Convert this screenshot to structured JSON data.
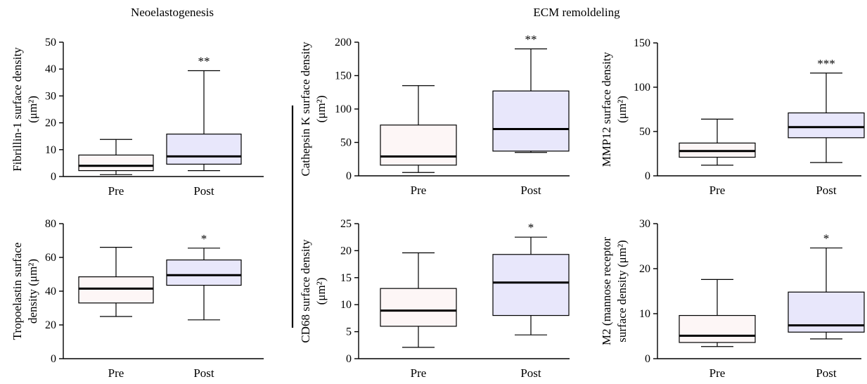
{
  "figure": {
    "section_left": "Neoelastogenesis",
    "section_right": "ECM remoldeling"
  },
  "colors": {
    "pre_box": "#fdf6f6",
    "post_box": "#e8e7fb",
    "line": "#000000",
    "median": "#000000"
  },
  "chart_data": [
    {
      "type": "box",
      "ylabel": [
        "Fibrillin-1 surface density",
        "(μm²)"
      ],
      "ylim": [
        0,
        50
      ],
      "yticks": [
        0,
        10,
        20,
        30,
        40,
        50
      ],
      "categories": [
        "Pre",
        "Post"
      ],
      "boxes": [
        {
          "min": 0.7,
          "q1": 2.2,
          "median": 4.0,
          "q3": 8.0,
          "max": 13.8
        },
        {
          "min": 2.2,
          "q1": 4.6,
          "median": 7.5,
          "q3": 15.8,
          "max": 39.4
        }
      ],
      "annotation": "**"
    },
    {
      "type": "box",
      "ylabel": [
        "Cathepsin K surface density",
        "(μm²)"
      ],
      "ylim": [
        0,
        200
      ],
      "yticks": [
        0,
        50,
        100,
        150,
        200
      ],
      "categories": [
        "Pre",
        "Post"
      ],
      "boxes": [
        {
          "min": 5,
          "q1": 16,
          "median": 29,
          "q3": 76,
          "max": 135
        },
        {
          "min": 35,
          "q1": 37,
          "median": 70,
          "q3": 127,
          "max": 190
        }
      ],
      "annotation": "**"
    },
    {
      "type": "box",
      "ylabel": [
        "MMP12 surface density",
        "(μm²)"
      ],
      "ylim": [
        0,
        150
      ],
      "yticks": [
        0,
        50,
        100,
        150
      ],
      "categories": [
        "Pre",
        "Post"
      ],
      "boxes": [
        {
          "min": 12,
          "q1": 21,
          "median": 28,
          "q3": 37,
          "max": 64
        },
        {
          "min": 15,
          "q1": 43,
          "median": 55,
          "q3": 71,
          "max": 116
        }
      ],
      "annotation": "***"
    },
    {
      "type": "box",
      "ylabel": [
        "Tropoelastin surface",
        "density (μm²)"
      ],
      "ylim": [
        0,
        80
      ],
      "yticks": [
        0,
        20,
        40,
        60,
        80
      ],
      "categories": [
        "Pre",
        "Post"
      ],
      "boxes": [
        {
          "min": 25,
          "q1": 33,
          "median": 41.5,
          "q3": 48.5,
          "max": 66
        },
        {
          "min": 23,
          "q1": 43.5,
          "median": 49.5,
          "q3": 58.5,
          "max": 65.5
        }
      ],
      "annotation": "*"
    },
    {
      "type": "box",
      "ylabel": [
        "CD68 surface density",
        "(μm²)"
      ],
      "ylim": [
        0,
        25
      ],
      "yticks": [
        0,
        5,
        10,
        15,
        20,
        25
      ],
      "categories": [
        "Pre",
        "Post"
      ],
      "boxes": [
        {
          "min": 2.1,
          "q1": 6.0,
          "median": 8.9,
          "q3": 13.0,
          "max": 19.6
        },
        {
          "min": 4.4,
          "q1": 8.0,
          "median": 14.1,
          "q3": 19.3,
          "max": 22.5
        }
      ],
      "annotation": "*"
    },
    {
      "type": "box",
      "ylabel": [
        "M2 (mannose receptor",
        "surface density (μm²)"
      ],
      "ylim": [
        0,
        30
      ],
      "yticks": [
        0,
        10,
        20,
        30
      ],
      "categories": [
        "Pre",
        "Post"
      ],
      "boxes": [
        {
          "min": 2.7,
          "q1": 3.6,
          "median": 5.1,
          "q3": 9.6,
          "max": 17.6
        },
        {
          "min": 4.4,
          "q1": 5.9,
          "median": 7.4,
          "q3": 14.8,
          "max": 24.6
        }
      ],
      "annotation": "*"
    }
  ]
}
